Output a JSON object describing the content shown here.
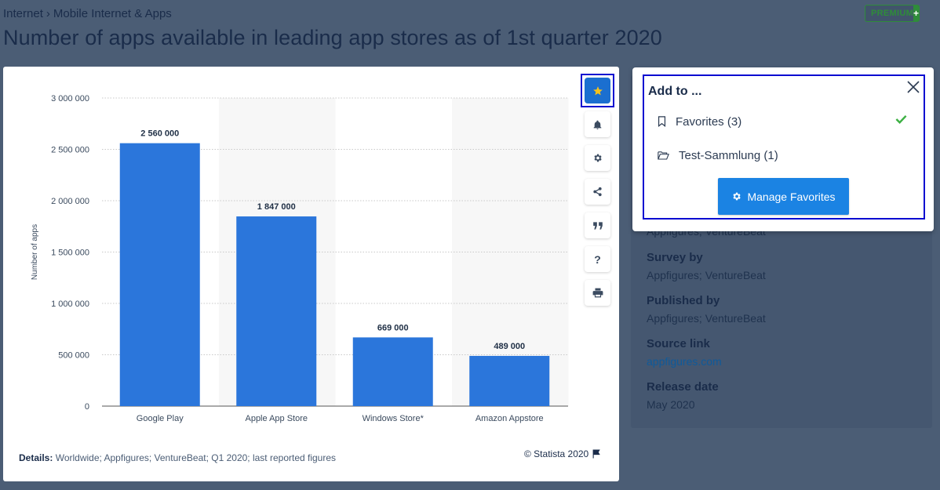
{
  "breadcrumb": {
    "items": [
      "Internet",
      "Mobile Internet & Apps"
    ],
    "separator": "›"
  },
  "page_title": "Number of apps available in leading app stores as of 1st quarter 2020",
  "premium": {
    "label": "PREMIUM",
    "plus": "+"
  },
  "chart_data": {
    "type": "bar",
    "title": "",
    "categories": [
      "Google Play",
      "Apple App Store",
      "Windows Store*",
      "Amazon Appstore"
    ],
    "values": [
      2560000,
      1847000,
      669000,
      489000
    ],
    "value_labels": [
      "2 560 000",
      "1 847 000",
      "669 000",
      "489 000"
    ],
    "ylabel": "Number of apps",
    "xlabel": "",
    "ylim": [
      0,
      3000000
    ],
    "yticks": [
      0,
      500000,
      1000000,
      1500000,
      2000000,
      2500000,
      3000000
    ],
    "ytick_labels": [
      "0",
      "500 000",
      "1 000 000",
      "1 500 000",
      "2 000 000",
      "2 500 000",
      "3 000 000"
    ],
    "grid": true,
    "bar_color": "#2b76db"
  },
  "toolbar": {
    "buttons": [
      {
        "icon": "star-icon",
        "active": true
      },
      {
        "icon": "bell-icon"
      },
      {
        "icon": "gear-icon"
      },
      {
        "icon": "share-icon"
      },
      {
        "icon": "quote-icon"
      },
      {
        "icon": "question-icon",
        "text": "?"
      },
      {
        "icon": "print-icon"
      }
    ]
  },
  "details": {
    "label": "Details:",
    "text": "Worldwide; Appfigures; VentureBeat; Q1 2020; last reported figures"
  },
  "copyright": "© Statista 2020",
  "sidebar": {
    "partial_text": "Appfigures; VentureBeat",
    "survey_by_label": "Survey by",
    "survey_by": "Appfigures; VentureBeat",
    "published_by_label": "Published by",
    "published_by": "Appfigures; VentureBeat",
    "source_link_label": "Source link",
    "source_link": "appfigures.com",
    "release_date_label": "Release date",
    "release_date": "May 2020"
  },
  "popup": {
    "title": "Add to ...",
    "items": [
      {
        "label": "Favorites (3)",
        "icon": "bookmark-icon",
        "checked": true
      },
      {
        "label": "Test-Sammlung (1)",
        "icon": "folder-open-icon",
        "checked": false
      }
    ],
    "manage_label": "Manage Favorites"
  },
  "colors": {
    "background": "#4b5d75",
    "accent": "#1b83e3",
    "bar": "#2b76db",
    "premium": "#2f8c3a",
    "check": "#3cb043"
  }
}
